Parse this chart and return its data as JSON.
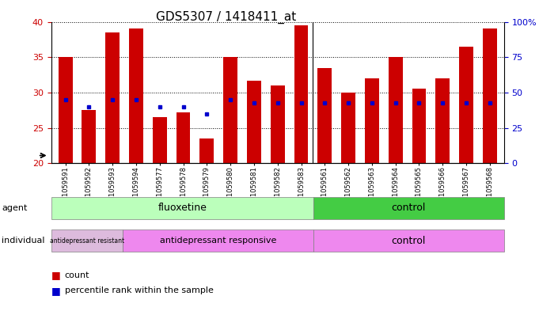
{
  "title": "GDS5307 / 1418411_at",
  "samples": [
    "GSM1059591",
    "GSM1059592",
    "GSM1059593",
    "GSM1059594",
    "GSM1059577",
    "GSM1059578",
    "GSM1059579",
    "GSM1059580",
    "GSM1059581",
    "GSM1059582",
    "GSM1059583",
    "GSM1059561",
    "GSM1059562",
    "GSM1059563",
    "GSM1059564",
    "GSM1059565",
    "GSM1059566",
    "GSM1059567",
    "GSM1059568"
  ],
  "bar_values": [
    35.0,
    27.5,
    38.5,
    39.0,
    26.5,
    27.2,
    23.5,
    35.0,
    31.7,
    31.0,
    39.5,
    33.5,
    30.0,
    32.0,
    35.0,
    30.5,
    32.0,
    36.5,
    39.0
  ],
  "blue_values": [
    29.0,
    28.0,
    29.0,
    29.0,
    28.0,
    28.0,
    27.0,
    29.0,
    28.5,
    28.5,
    28.5,
    28.5,
    28.5,
    28.5,
    28.5,
    28.5,
    28.5,
    28.5,
    28.5
  ],
  "ylim_left": [
    20,
    40
  ],
  "ylim_right": [
    0,
    100
  ],
  "bar_color": "#cc0000",
  "blue_color": "#0000cc",
  "left_axis_color": "#cc0000",
  "right_axis_color": "#0000cc",
  "n_fluoxetine": 11,
  "n_control": 8,
  "n_resistant": 3,
  "n_responsive": 8,
  "fluoxetine_color": "#bbffbb",
  "control_agent_color": "#44cc44",
  "resistant_color": "#ddbbdd",
  "responsive_color": "#ee88ee",
  "control_indiv_color": "#ee88ee"
}
